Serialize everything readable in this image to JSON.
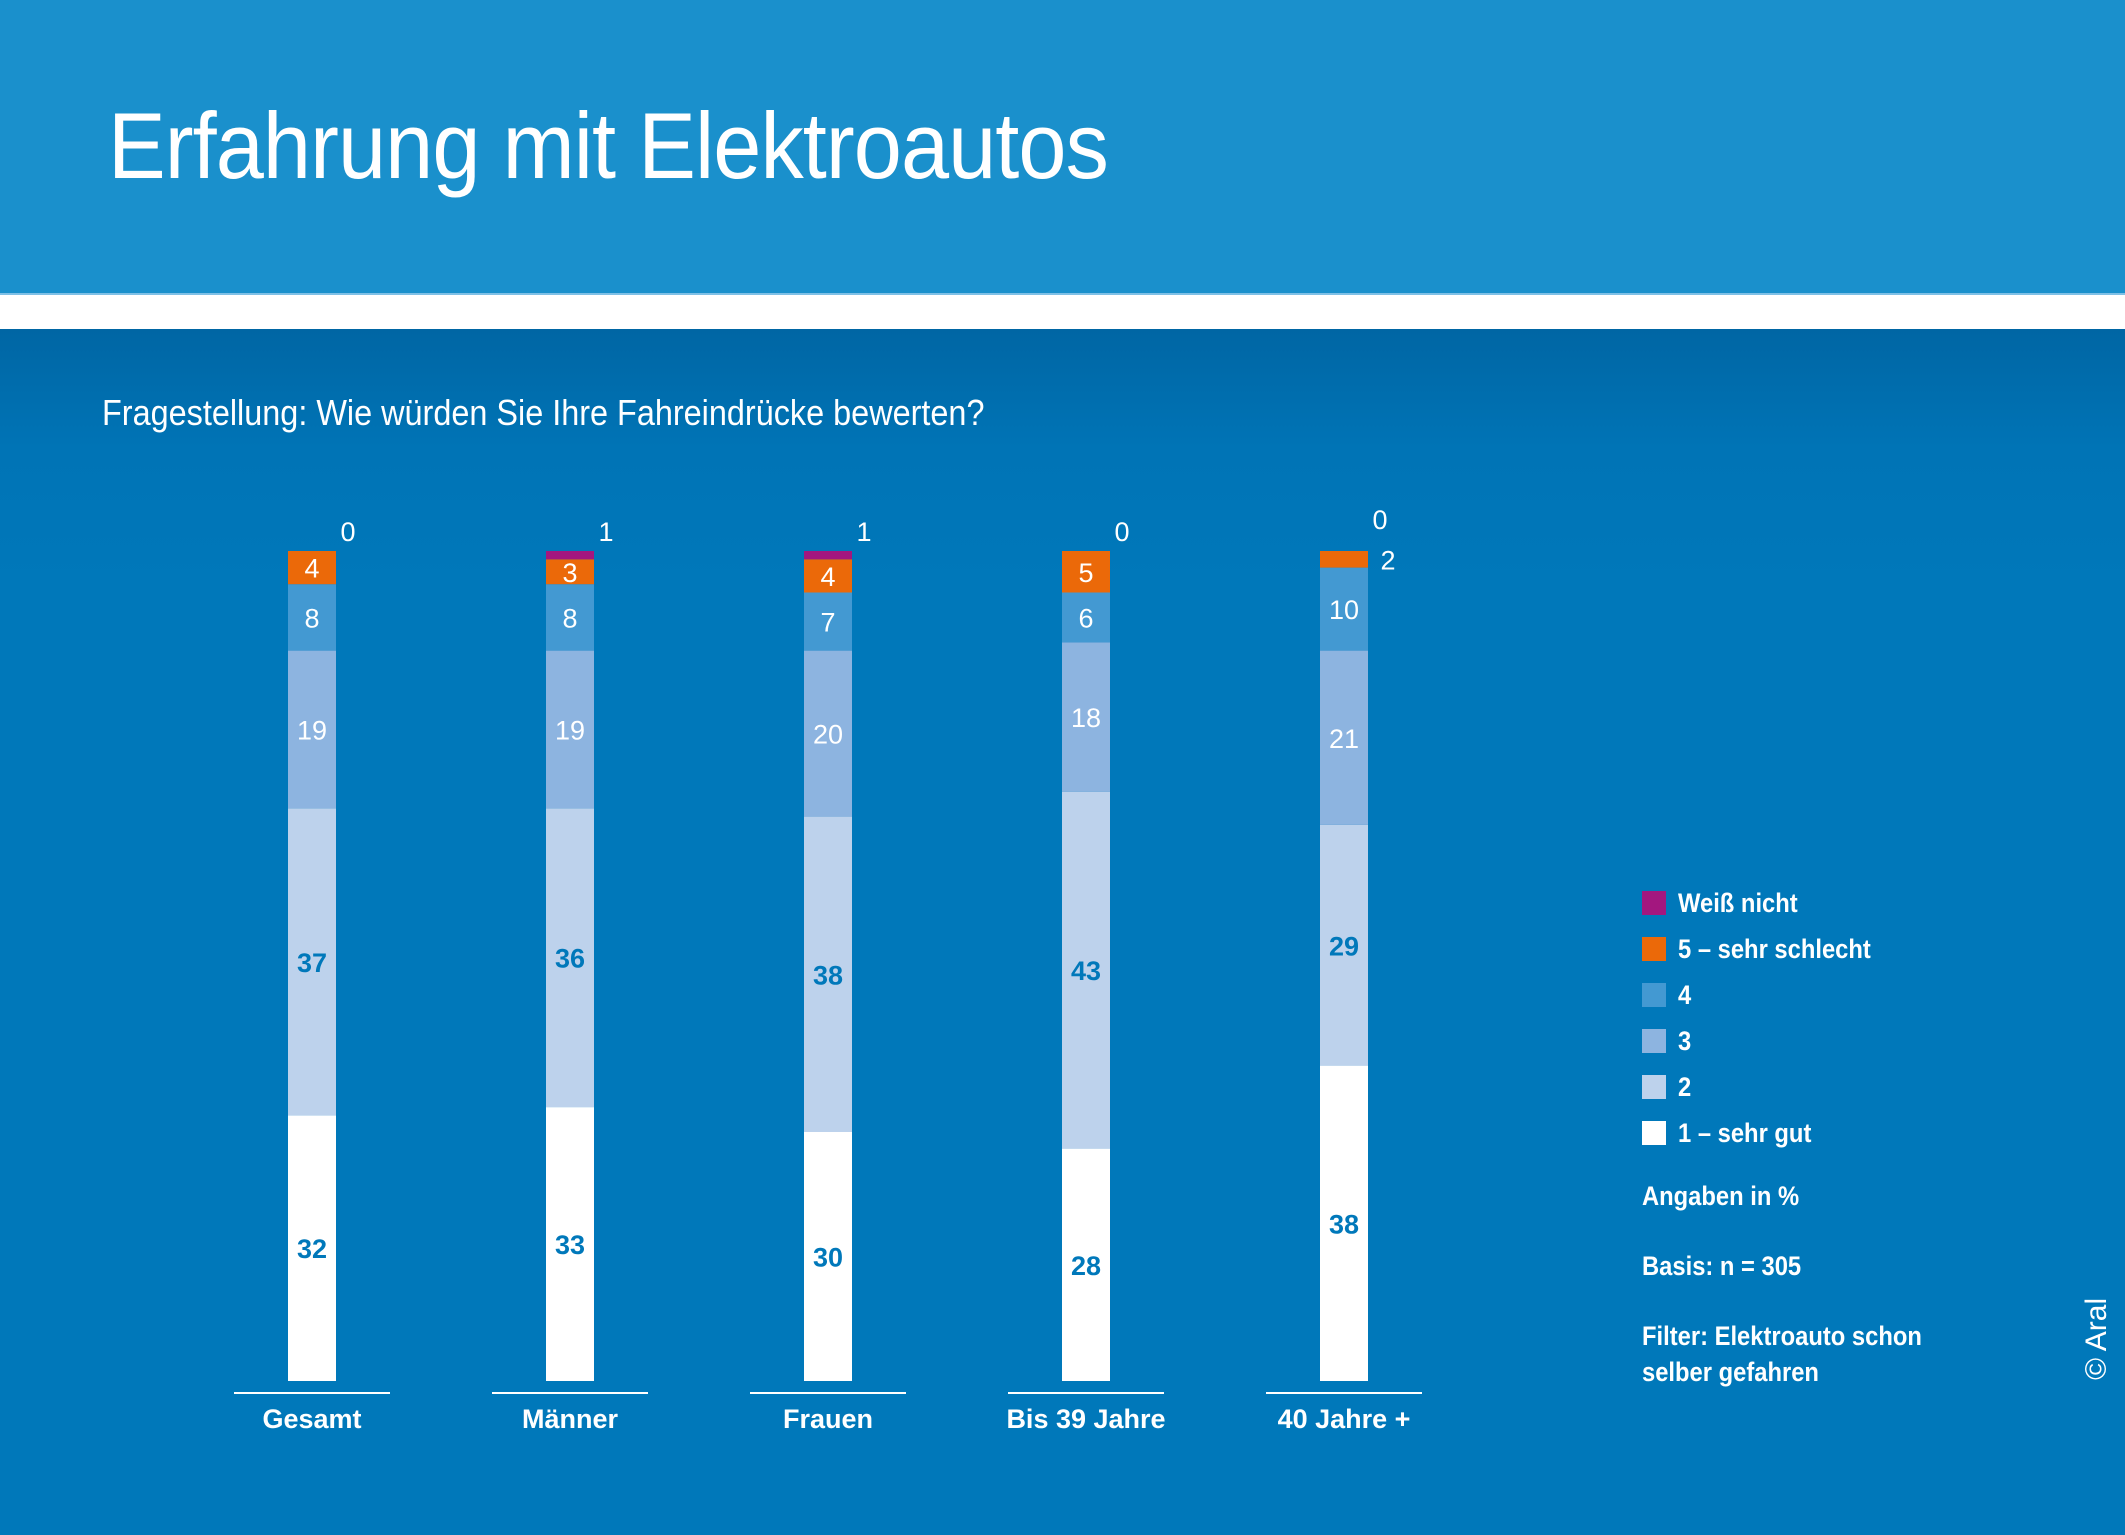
{
  "header": {
    "title": "Erfahrung mit Elektroautos",
    "subtitle": "Fragestellung: Wie würden Sie Ihre Fahreindrücke bewerten?"
  },
  "colors": {
    "header_bg": "#1A90CC",
    "body_bg": "#0078BA",
    "weiss_nicht": "#A3177F",
    "sehr_schlecht": "#EB6909",
    "rating_4": "#4399D2",
    "rating_3": "#8DB4E0",
    "rating_2": "#BDD2EC",
    "rating_1": "#FFFFFF",
    "dark_label": "#0078BA"
  },
  "chart_data": {
    "type": "bar",
    "stacked": true,
    "title": "Erfahrung mit Elektroautos",
    "subtitle": "Fragestellung: Wie würden Sie Ihre Fahreindrücke bewerten?",
    "xlabel": "",
    "ylabel": "",
    "ylim": [
      0,
      100
    ],
    "grid": false,
    "legend_position": "right",
    "categories": [
      "Gesamt",
      "Männer",
      "Frauen",
      "Bis 39 Jahre",
      "40 Jahre +"
    ],
    "series": [
      {
        "name": "1 – sehr gut",
        "color": "#FFFFFF",
        "label_color": "#0078BA",
        "values": [
          32,
          33,
          30,
          28,
          38
        ]
      },
      {
        "name": "2",
        "color": "#BDD2EC",
        "label_color": "#0078BA",
        "values": [
          37,
          36,
          38,
          43,
          29
        ]
      },
      {
        "name": "3",
        "color": "#8DB4E0",
        "label_color": "#FFFFFF",
        "values": [
          19,
          19,
          20,
          18,
          21
        ]
      },
      {
        "name": "4",
        "color": "#4399D2",
        "label_color": "#FFFFFF",
        "values": [
          8,
          8,
          7,
          6,
          10
        ]
      },
      {
        "name": "5 – sehr schlecht",
        "color": "#EB6909",
        "label_color": "#FFFFFF",
        "values": [
          4,
          3,
          4,
          5,
          2
        ]
      },
      {
        "name": "Weiß nicht",
        "color": "#A3177F",
        "label_color": "#FFFFFF",
        "values": [
          0,
          1,
          1,
          0,
          0
        ]
      }
    ],
    "notes": [
      "Angaben in %",
      "Basis: n = 305",
      "Filter: Elektroauto schon selber gefahren"
    ]
  },
  "legend": {
    "items": [
      {
        "label": "Weiß nicht",
        "color": "#A3177F"
      },
      {
        "label": "5 – sehr schlecht",
        "color": "#EB6909"
      },
      {
        "label": "4",
        "color": "#4399D2"
      },
      {
        "label": "3",
        "color": "#8DB4E0"
      },
      {
        "label": "2",
        "color": "#BDD2EC"
      },
      {
        "label": "1 – sehr gut",
        "color": "#FFFFFF"
      }
    ],
    "unit_note": "Angaben in %",
    "basis_note": "Basis: n = 305",
    "filter_note_line1": "Filter: Elektroauto schon",
    "filter_note_line2": "selber gefahren"
  },
  "copyright": "© Aral"
}
